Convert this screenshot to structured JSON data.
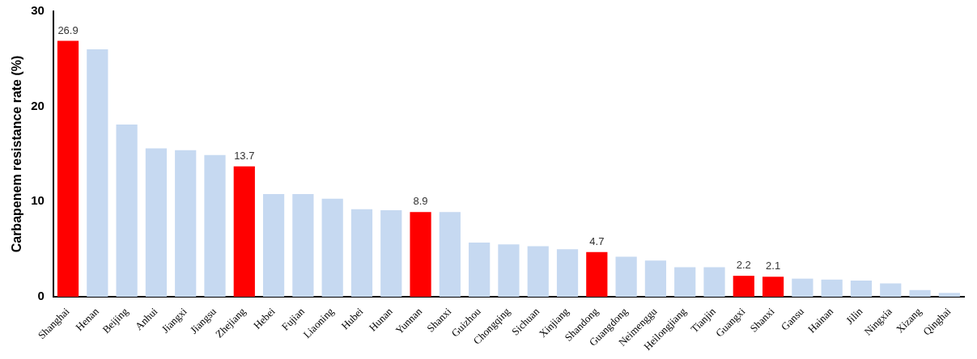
{
  "chart_data": {
    "type": "bar",
    "y_label": "Carbapenem resistance rate (%)",
    "categories": [
      "Shanghai",
      "Henan",
      "Beijing",
      "Anhui",
      "Jiangxi",
      "Jiangsu",
      "Zhejiang",
      "Hebei",
      "Fujian",
      "Liaoning",
      "Hubei",
      "Hunan",
      "Yunnan",
      "Shanxi",
      "Guizhou",
      "Chongqing",
      "Sichuan",
      "Xinjiang",
      "Shandong",
      "Guangdong",
      "Neimenggu",
      "Heilongjiang",
      "Tianjin",
      "Guangxi",
      "Shanxi",
      "Gansu",
      "Hainan",
      "Jilin",
      "Ningxia",
      "Xizang",
      "Qinghai"
    ],
    "values": [
      26.9,
      26.0,
      18.1,
      15.6,
      15.4,
      14.9,
      13.7,
      10.8,
      10.8,
      10.3,
      9.2,
      9.1,
      8.9,
      8.9,
      5.7,
      5.5,
      5.3,
      5.0,
      4.7,
      4.2,
      3.8,
      3.1,
      3.1,
      2.2,
      2.1,
      1.9,
      1.8,
      1.7,
      1.4,
      0.7,
      0.4
    ],
    "value_labels": [
      "26.9",
      null,
      null,
      null,
      null,
      null,
      "13.7",
      null,
      null,
      null,
      null,
      null,
      "8.9",
      null,
      null,
      null,
      null,
      null,
      "4.7",
      null,
      null,
      null,
      null,
      "2.2",
      "2.1",
      null,
      null,
      null,
      null,
      null,
      null
    ],
    "colors": [
      "#ff0000",
      "#c6d9f1",
      "#c6d9f1",
      "#c6d9f1",
      "#c6d9f1",
      "#c6d9f1",
      "#ff0000",
      "#c6d9f1",
      "#c6d9f1",
      "#c6d9f1",
      "#c6d9f1",
      "#c6d9f1",
      "#ff0000",
      "#c6d9f1",
      "#c6d9f1",
      "#c6d9f1",
      "#c6d9f1",
      "#c6d9f1",
      "#ff0000",
      "#c6d9f1",
      "#c6d9f1",
      "#c6d9f1",
      "#c6d9f1",
      "#ff0000",
      "#ff0000",
      "#c6d9f1",
      "#c6d9f1",
      "#c6d9f1",
      "#c6d9f1",
      "#c6d9f1",
      "#c6d9f1"
    ],
    "ylim": [
      0,
      30
    ],
    "yticks": [
      0,
      10,
      20,
      30
    ],
    "grid": false,
    "data_labels": true
  }
}
